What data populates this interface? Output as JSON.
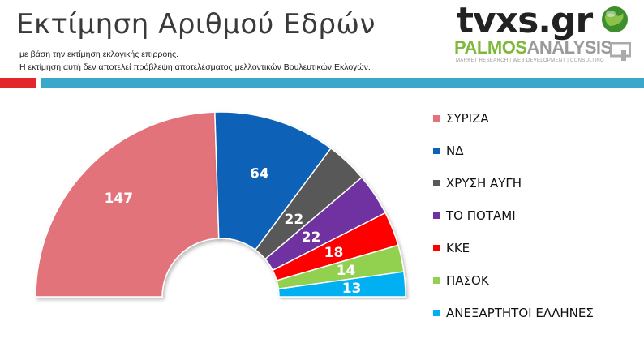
{
  "header": {
    "title": "Εκτίμηση Αριθμού Εδρών",
    "subtitle": "με βάση την εκτίμηση εκλογικής επιρροής.",
    "disclaimer": "Η εκτίμηση αυτή δεν αποτελεί πρόβλεψη αποτελέσματος μελλοντικών Βουλευτικών Εκλογών."
  },
  "logos": {
    "tvxs": "tvxs.gr",
    "palmos_main": "PALMOS",
    "palmos_second": "ANALYSIS",
    "palmos_tagline": "MARKET RESEARCH | WEB DEVELOPMENT | CONSULTING"
  },
  "chart_data": {
    "type": "pie",
    "subtype": "semicircle-parliament",
    "title": "Εκτίμηση Αριθμού Εδρών",
    "total": 300,
    "legend_position": "right",
    "slices": [
      {
        "name": "ΣΥΡΙΖΑ",
        "value": 147,
        "color": "#e2737a"
      },
      {
        "name": "ΝΔ",
        "value": 64,
        "color": "#0d62b8"
      },
      {
        "name": "ΧΡΥΣΗ ΑΥΓΗ",
        "value": 22,
        "color": "#595959"
      },
      {
        "name": "ΤΟ ΠΟΤΑΜΙ",
        "value": 22,
        "color": "#7030a0"
      },
      {
        "name": "ΚΚΕ",
        "value": 18,
        "color": "#ff0000"
      },
      {
        "name": "ΠΑΣΟΚ",
        "value": 14,
        "color": "#92d050"
      },
      {
        "name": "ΑΝΕΞΑΡΤΗΤΟΙ ΕΛΛΗΝΕΣ",
        "value": 13,
        "color": "#00b0f0"
      }
    ]
  }
}
